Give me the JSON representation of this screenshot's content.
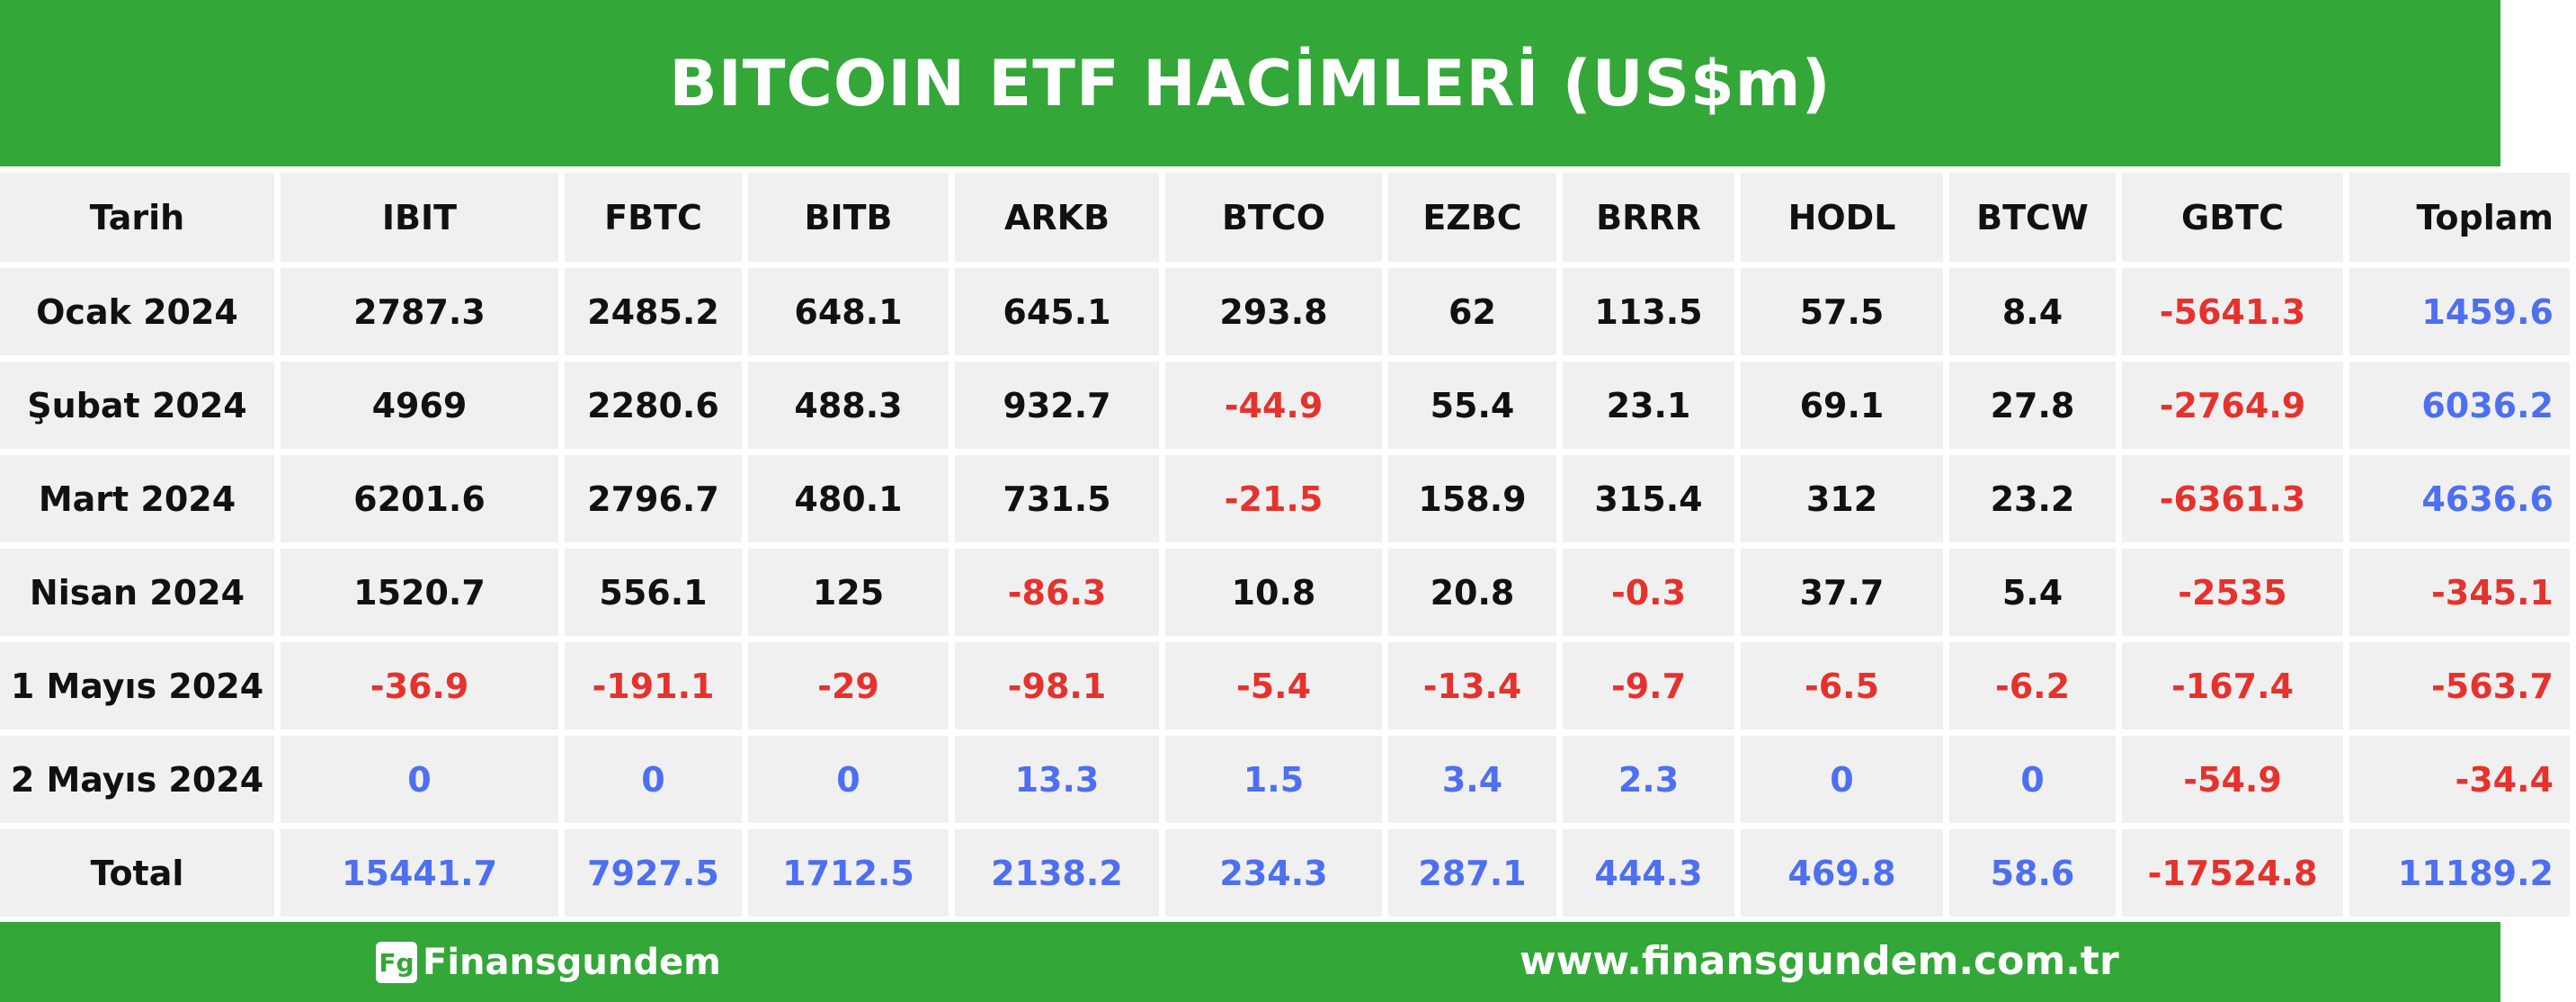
{
  "header": {
    "title": "BITCOIN ETF HACİMLERİ (US$m)"
  },
  "table": {
    "columns": [
      "Tarih",
      "IBIT",
      "FBTC",
      "BITB",
      "ARKB",
      "BTCO",
      "EZBC",
      "BRRR",
      "HODL",
      "BTCW",
      "GBTC",
      "Toplam"
    ],
    "rows": [
      [
        "Ocak 2024",
        2787.3,
        2485.2,
        648.1,
        645.1,
        293.8,
        62,
        113.5,
        57.5,
        8.4,
        -5641.3,
        1459.6
      ],
      [
        "Şubat 2024",
        4969,
        2280.6,
        488.3,
        932.7,
        -44.9,
        55.4,
        23.1,
        69.1,
        27.8,
        -2764.9,
        6036.2
      ],
      [
        "Mart 2024",
        6201.6,
        2796.7,
        480.1,
        731.5,
        -21.5,
        158.9,
        315.4,
        312,
        23.2,
        -6361.3,
        4636.6
      ],
      [
        "Nisan 2024",
        1520.7,
        556.1,
        125,
        -86.3,
        10.8,
        20.8,
        -0.3,
        37.7,
        5.4,
        -2535,
        -345.1
      ],
      [
        "1 Mayıs 2024",
        -36.9,
        -191.1,
        -29,
        -98.1,
        -5.4,
        -13.4,
        -9.7,
        -6.5,
        -6.2,
        -167.4,
        -563.7
      ],
      [
        "2 Mayıs 2024",
        0,
        0,
        0,
        13.3,
        1.5,
        3.4,
        2.3,
        0,
        0,
        -54.9,
        -34.4
      ],
      [
        "Total",
        15441.7,
        7927.5,
        1712.5,
        2138.2,
        234.3,
        287.1,
        444.3,
        469.8,
        58.6,
        -17524.8,
        11189.2
      ]
    ]
  },
  "footer": {
    "logo_icon": "Fg",
    "logo": "Finansgundem",
    "url": "www.finansgundem.com.tr"
  }
}
